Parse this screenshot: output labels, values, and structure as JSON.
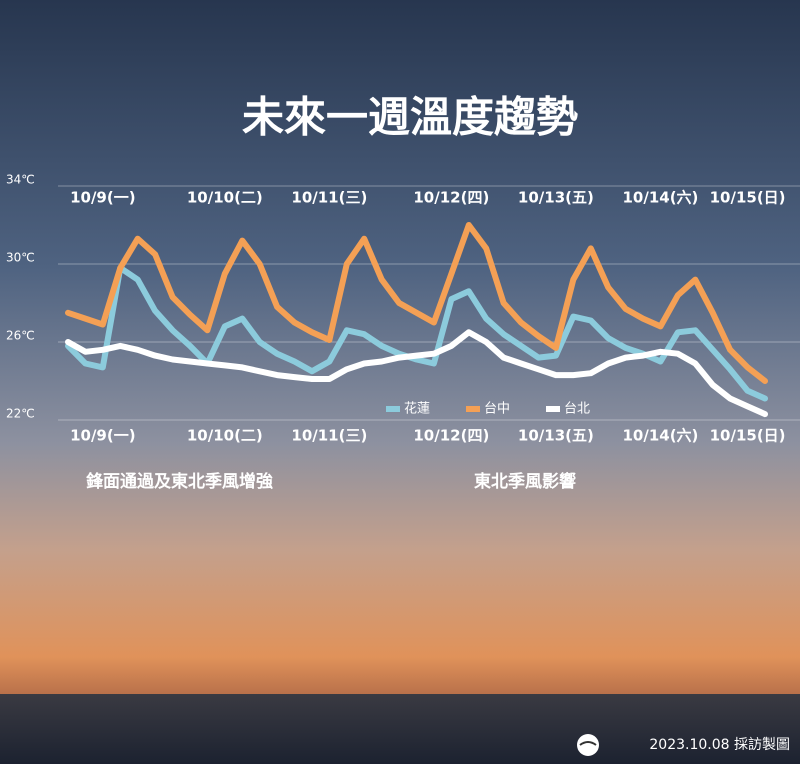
{
  "chart_data": {
    "type": "line",
    "title": "未來一週溫度趨勢",
    "categories": [
      null,
      null,
      "10/9(一)",
      null,
      null,
      null,
      null,
      null,
      null,
      "10/10(二)",
      null,
      null,
      null,
      null,
      null,
      "10/11(三)",
      null,
      null,
      null,
      null,
      null,
      null,
      "10/12(四)",
      null,
      null,
      null,
      null,
      null,
      "10/13(五)",
      null,
      null,
      null,
      null,
      null,
      "10/14(六)",
      null,
      null,
      null,
      null,
      "10/15(日)",
      null
    ],
    "series": [
      {
        "name": "花蓮",
        "color": "#8ccbdc",
        "values": [
          25.8,
          24.9,
          24.7,
          29.8,
          29.2,
          27.6,
          26.6,
          25.8,
          24.9,
          26.8,
          27.2,
          26.0,
          25.4,
          25.0,
          24.5,
          25.0,
          26.6,
          26.4,
          25.8,
          25.4,
          25.1,
          24.9,
          28.2,
          28.6,
          27.2,
          26.4,
          25.8,
          25.2,
          25.3,
          27.3,
          27.1,
          26.2,
          25.7,
          25.4,
          25.0,
          26.5,
          26.6,
          25.6,
          24.6,
          23.5,
          23.1
        ]
      },
      {
        "name": "台中",
        "color": "#f4a055",
        "values": [
          27.5,
          27.2,
          26.9,
          29.8,
          31.3,
          30.5,
          28.3,
          27.4,
          26.6,
          29.5,
          31.2,
          30.0,
          27.8,
          27.0,
          26.5,
          26.1,
          30.0,
          31.3,
          29.2,
          28.0,
          27.5,
          27.0,
          29.5,
          32.0,
          30.8,
          28.0,
          27.0,
          26.3,
          25.7,
          29.2,
          30.8,
          28.8,
          27.7,
          27.2,
          26.8,
          28.4,
          29.2,
          27.5,
          25.6,
          24.7,
          24.0
        ]
      },
      {
        "name": "台北",
        "color": "#ffffff",
        "values": [
          26.0,
          25.5,
          25.6,
          25.8,
          25.6,
          25.3,
          25.1,
          25.0,
          24.9,
          24.8,
          24.7,
          24.5,
          24.3,
          24.2,
          24.1,
          24.1,
          24.6,
          24.9,
          25.0,
          25.2,
          25.3,
          25.4,
          25.8,
          26.5,
          26.0,
          25.2,
          24.9,
          24.6,
          24.3,
          24.3,
          24.4,
          24.9,
          25.2,
          25.3,
          25.5,
          25.4,
          24.9,
          23.8,
          23.1,
          22.7,
          22.3
        ]
      }
    ],
    "ylim": [
      22,
      34
    ],
    "yticks": [
      {
        "value": 22,
        "label": "22℃"
      },
      {
        "value": 26,
        "label": "26℃"
      },
      {
        "value": 30,
        "label": "30℃"
      },
      {
        "value": 34,
        "label": "34℃"
      }
    ],
    "grid": true,
    "annotations": [
      "鋒面通過及東北季風增強",
      "東北季風影響"
    ],
    "footer": "2023.10.08 採訪製圖"
  }
}
